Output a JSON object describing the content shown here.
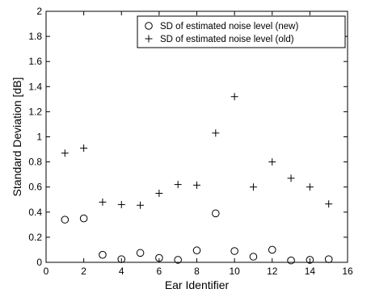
{
  "chart_data": {
    "type": "scatter",
    "title": "",
    "xlabel": "Ear Identifier",
    "ylabel": "Standard Deviation [dB]",
    "xlim": [
      0,
      16
    ],
    "ylim": [
      0,
      2
    ],
    "xticks": [
      0,
      2,
      4,
      6,
      8,
      10,
      12,
      14,
      16
    ],
    "yticks": [
      0,
      0.2,
      0.4,
      0.6,
      0.8,
      1,
      1.2,
      1.4,
      1.6,
      1.8,
      2
    ],
    "xtick_labels": [
      "0",
      "2",
      "4",
      "6",
      "8",
      "10",
      "12",
      "14",
      "16"
    ],
    "ytick_labels": [
      "0",
      "0.2",
      "0.4",
      "0.6",
      "0.8",
      "1",
      "1.2",
      "1.4",
      "1.6",
      "1.8",
      "2"
    ],
    "grid": false,
    "legend_position": "top-right",
    "series": [
      {
        "name": "SD of estimated noise level (new)",
        "marker": "circle",
        "color": "#000000",
        "x": [
          1,
          2,
          3,
          4,
          5,
          6,
          7,
          8,
          9,
          10,
          11,
          12,
          13,
          14,
          15
        ],
        "y": [
          0.34,
          0.35,
          0.06,
          0.025,
          0.075,
          0.035,
          0.02,
          0.095,
          0.39,
          0.09,
          0.045,
          0.1,
          0.015,
          0.02,
          0.025
        ]
      },
      {
        "name": "SD of estimated noise level (old)",
        "marker": "plus",
        "color": "#000000",
        "x": [
          1,
          2,
          3,
          4,
          5,
          6,
          7,
          8,
          9,
          10,
          11,
          12,
          13,
          14,
          15
        ],
        "y": [
          0.87,
          0.91,
          0.48,
          0.46,
          0.455,
          0.55,
          0.62,
          0.615,
          1.03,
          1.32,
          0.6,
          0.8,
          0.67,
          0.6,
          0.465
        ]
      }
    ]
  }
}
